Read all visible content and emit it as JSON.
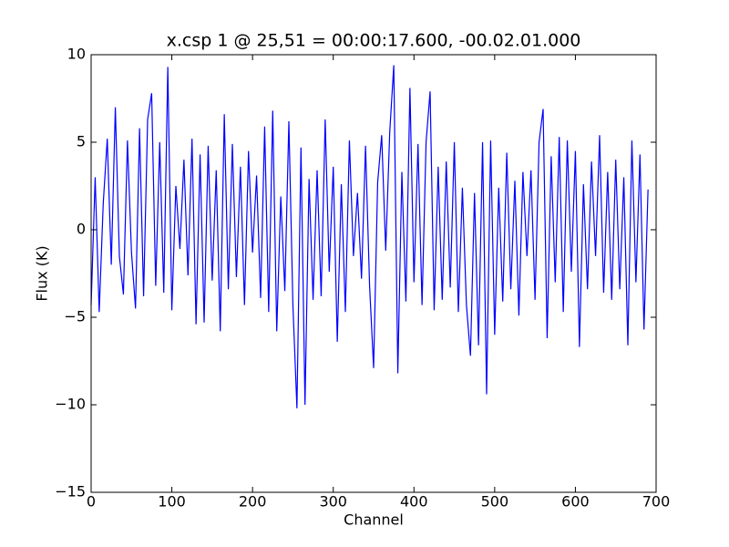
{
  "chart_data": {
    "type": "line",
    "title": "x.csp 1 @ 25,51 = 00:00:17.600, -00.02.01.000",
    "xlabel": "Channel",
    "ylabel": "Flux (K)",
    "xlim": [
      0,
      700
    ],
    "ylim": [
      -15,
      10
    ],
    "xticks": [
      0,
      100,
      200,
      300,
      400,
      500,
      600,
      700
    ],
    "yticks": [
      {
        "value": -15,
        "label": "−15"
      },
      {
        "value": -10,
        "label": "−10"
      },
      {
        "value": -5,
        "label": "−5"
      },
      0,
      5,
      10
    ],
    "grid": false,
    "series": [
      {
        "color": "#0000ff",
        "x": [
          0,
          5,
          10,
          15,
          20,
          25,
          30,
          35,
          40,
          45,
          50,
          55,
          60,
          65,
          70,
          75,
          80,
          85,
          90,
          95,
          100,
          105,
          110,
          115,
          120,
          125,
          130,
          135,
          140,
          145,
          150,
          155,
          160,
          165,
          170,
          175,
          180,
          185,
          190,
          195,
          200,
          205,
          210,
          215,
          220,
          225,
          230,
          235,
          240,
          245,
          250,
          255,
          260,
          265,
          270,
          275,
          280,
          285,
          290,
          295,
          300,
          305,
          310,
          315,
          320,
          325,
          330,
          335,
          340,
          345,
          350,
          355,
          360,
          365,
          370,
          375,
          380,
          385,
          390,
          395,
          400,
          405,
          410,
          415,
          420,
          425,
          430,
          435,
          440,
          445,
          450,
          455,
          460,
          465,
          470,
          475,
          480,
          485,
          490,
          495,
          500,
          505,
          510,
          515,
          520,
          525,
          530,
          535,
          540,
          545,
          550,
          555,
          560,
          565,
          570,
          575,
          580,
          585,
          590,
          595,
          600,
          605,
          610,
          615,
          620,
          625,
          630,
          635,
          640,
          645,
          650,
          655,
          660,
          665,
          670,
          675,
          680,
          685,
          690
        ],
        "values": [
          -4.3,
          3.0,
          -4.7,
          1.5,
          5.2,
          -2.0,
          7.0,
          -1.5,
          -3.7,
          5.1,
          -1.3,
          -4.5,
          5.8,
          -3.8,
          6.3,
          7.8,
          -3.2,
          5.0,
          -3.6,
          9.3,
          -4.6,
          2.5,
          -1.1,
          4.0,
          -2.6,
          5.2,
          -5.4,
          4.3,
          -5.3,
          4.8,
          -2.9,
          3.4,
          -5.8,
          6.6,
          -3.4,
          4.9,
          -2.7,
          3.6,
          -4.3,
          4.5,
          -1.3,
          3.1,
          -3.9,
          5.9,
          -4.7,
          6.8,
          -5.8,
          1.9,
          -3.5,
          6.2,
          -4.3,
          -10.2,
          4.7,
          -10.0,
          2.9,
          -4.0,
          3.4,
          -3.8,
          6.3,
          -2.4,
          3.6,
          -6.4,
          2.6,
          -4.7,
          5.1,
          -1.5,
          2.1,
          -2.8,
          4.8,
          -3.2,
          -7.9,
          2.7,
          5.4,
          -1.2,
          5.6,
          9.4,
          -8.2,
          3.3,
          -4.1,
          8.1,
          -3.0,
          4.9,
          -4.3,
          5.0,
          7.9,
          -4.6,
          3.6,
          -4.0,
          3.9,
          -3.3,
          5.0,
          -4.7,
          2.4,
          -4.3,
          -7.2,
          2.1,
          -6.6,
          5.0,
          -9.4,
          5.1,
          -6.0,
          2.4,
          -4.1,
          4.4,
          -3.4,
          2.8,
          -4.9,
          3.3,
          -1.5,
          3.4,
          -4.0,
          5.0,
          6.9,
          -6.2,
          4.2,
          -3.0,
          5.3,
          -4.7,
          5.1,
          -2.4,
          4.5,
          -6.7,
          2.6,
          -3.4,
          3.9,
          -1.5,
          5.4,
          -3.6,
          3.3,
          -4.0,
          4.0,
          -3.4,
          3.0,
          -6.6,
          5.1,
          -3.0,
          4.3,
          -5.7,
          2.3
        ]
      }
    ]
  }
}
